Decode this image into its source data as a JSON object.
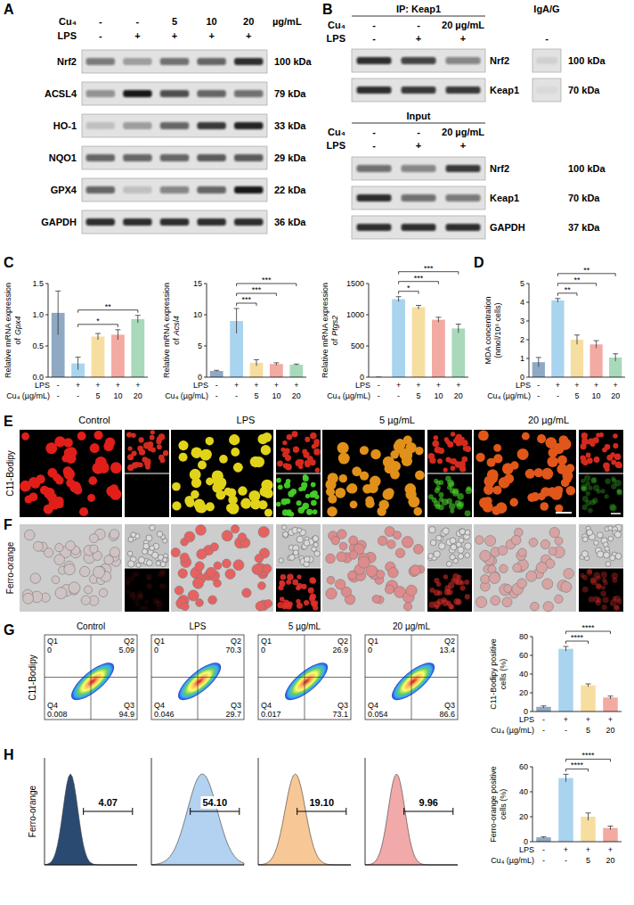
{
  "panel_a": {
    "letter": "A",
    "treatments": [
      {
        "label": "Cu₄",
        "values": [
          "-",
          "-",
          "5",
          "10",
          "20"
        ],
        "unit": "µg/mL"
      },
      {
        "label": "LPS",
        "values": [
          "-",
          "+",
          "+",
          "+",
          "+"
        ]
      }
    ],
    "rows": [
      {
        "protein": "Nrf2",
        "size": "100 kDa",
        "bands": [
          0.5,
          0.3,
          0.55,
          0.6,
          0.85
        ]
      },
      {
        "protein": "ACSL4",
        "size": "79 kDa",
        "bands": [
          0.4,
          0.95,
          0.7,
          0.6,
          0.55
        ]
      },
      {
        "protein": "HO-1",
        "size": "33 kDa",
        "bands": [
          0.15,
          0.3,
          0.6,
          0.8,
          0.9
        ]
      },
      {
        "protein": "NQO1",
        "size": "29 kDa",
        "bands": [
          0.6,
          0.6,
          0.6,
          0.65,
          0.65
        ]
      },
      {
        "protein": "GPX4",
        "size": "22 kDa",
        "bands": [
          0.6,
          0.15,
          0.45,
          0.6,
          0.95
        ]
      },
      {
        "protein": "GAPDH",
        "size": "36 kDa",
        "bands": [
          0.85,
          0.85,
          0.85,
          0.85,
          0.85
        ]
      }
    ]
  },
  "panel_b": {
    "letter": "B",
    "ip_title": "IP: Keap1",
    "control_lane": "IgA/G",
    "ip_treatments": [
      {
        "label": "Cu₄",
        "values": [
          "-",
          "-",
          "20 µg/mL"
        ]
      },
      {
        "label": "LPS",
        "values": [
          "-",
          "+",
          "+",
          "-"
        ]
      }
    ],
    "ip_rows": [
      {
        "protein": "Nrf2",
        "size": "100 kDa",
        "bands": [
          0.85,
          0.75,
          0.45
        ],
        "control_band": 0.08
      },
      {
        "protein": "Keap1",
        "size": "70 kDa",
        "bands": [
          0.85,
          0.8,
          0.8
        ],
        "control_band": 0.04
      }
    ],
    "input_title": "Input",
    "input_treatments": [
      {
        "label": "Cu₄",
        "values": [
          "-",
          "-",
          "20 µg/mL"
        ]
      },
      {
        "label": "LPS",
        "values": [
          "-",
          "+",
          "+"
        ]
      }
    ],
    "input_rows": [
      {
        "protein": "Nrf2",
        "size": "100 kDa",
        "bands": [
          0.55,
          0.45,
          0.8
        ]
      },
      {
        "protein": "Keap1",
        "size": "70 kDa",
        "bands": [
          0.85,
          0.55,
          0.5
        ]
      },
      {
        "protein": "GAPDH",
        "size": "37 kDa",
        "bands": [
          0.85,
          0.85,
          0.85
        ]
      }
    ]
  },
  "panel_e": {
    "letter": "E",
    "channel": "C11-Bodipy",
    "conditions": [
      "Control",
      "LPS",
      "5 µg/mL",
      "20 µg/mL"
    ]
  },
  "panel_f": {
    "letter": "F",
    "channel": "Ferro-orange"
  },
  "panel_g": {
    "letter": "G",
    "channel": "C11-Bodipy",
    "conditions": [
      "Control",
      "LPS",
      "5 µg/mL",
      "20 µg/mL"
    ],
    "plots": [
      {
        "quadrants": [
          {
            "name": "Q1",
            "value": 0
          },
          {
            "name": "Q2",
            "value": 5.09
          },
          {
            "name": "Q3",
            "value": 94.9
          },
          {
            "name": "Q4",
            "value": 0.008
          }
        ]
      },
      {
        "quadrants": [
          {
            "name": "Q1",
            "value": 0
          },
          {
            "name": "Q2",
            "value": 70.3
          },
          {
            "name": "Q3",
            "value": 29.7
          },
          {
            "name": "Q4",
            "value": 0.046
          }
        ]
      },
      {
        "quadrants": [
          {
            "name": "Q1",
            "value": 0
          },
          {
            "name": "Q2",
            "value": 26.9
          },
          {
            "name": "Q3",
            "value": 73.1
          },
          {
            "name": "Q4",
            "value": 0.017
          }
        ]
      },
      {
        "quadrants": [
          {
            "name": "Q1",
            "value": 0
          },
          {
            "name": "Q2",
            "value": 13.4
          },
          {
            "name": "Q3",
            "value": 86.6
          },
          {
            "name": "Q4",
            "value": 0.054
          }
        ]
      }
    ]
  },
  "panel_h": {
    "letter": "H",
    "channel": "Ferro-orange",
    "plots": [
      {
        "gate": {
          "value": 4.07,
          "label": "4.07"
        },
        "color": "#2b4a72"
      },
      {
        "gate": {
          "value": 54.1,
          "label": "54.10"
        },
        "color": "#b3d1f0"
      },
      {
        "gate": {
          "value": 19.1,
          "label": "19.10"
        },
        "color": "#f7c795"
      },
      {
        "gate": {
          "value": 9.96,
          "label": "9.96"
        },
        "color": "#f2a9a9"
      }
    ]
  },
  "chart_data": [
    {
      "type": "bar",
      "panel": "C",
      "y_label": [
        "Relative mRNA expression",
        "of"
      ],
      "gene": "Gpx4",
      "categories": [
        null,
        null,
        null,
        null,
        null
      ],
      "values": [
        1.03,
        0.22,
        0.65,
        0.68,
        0.93
      ],
      "errors": [
        0.35,
        0.1,
        0.05,
        0.08,
        0.06
      ],
      "colors": [
        "#8ea9c4",
        "#a9d4ef",
        "#f6dea0",
        "#f2aaa2",
        "#a8d9ba"
      ],
      "ylim": [
        0,
        1.5
      ],
      "yticks": [
        {
          "value": 0,
          "label": "0.0"
        },
        {
          "value": 0.5,
          "label": "0.5"
        },
        {
          "value": 1,
          "label": "1.0"
        },
        {
          "value": 1.5,
          "label": "1.5"
        }
      ],
      "x_table": [
        {
          "label": "LPS",
          "values": [
            "-",
            "+",
            "+",
            "+",
            "+"
          ]
        },
        {
          "label": "Cu₄ (µg/mL)",
          "values": [
            "-",
            "-",
            "5",
            "10",
            "20"
          ]
        }
      ],
      "significance": [
        {
          "from": 1,
          "to": 3,
          "label": "*"
        },
        {
          "from": 1,
          "to": 4,
          "label": "**"
        }
      ]
    },
    {
      "type": "bar",
      "y_label": [
        "Relative mRNA expression",
        "of"
      ],
      "gene": "Acsl4",
      "categories": [
        null,
        null,
        null,
        null,
        null
      ],
      "values": [
        1.0,
        9.0,
        2.3,
        2.1,
        2.0
      ],
      "errors": [
        0.1,
        2.0,
        0.5,
        0.2,
        0.1
      ],
      "colors": [
        "#8ea9c4",
        "#a9d4ef",
        "#f6dea0",
        "#f2aaa2",
        "#a8d9ba"
      ],
      "ylim": [
        0,
        15
      ],
      "yticks": [
        0,
        5,
        10,
        15
      ],
      "x_table": [
        {
          "label": "LPS",
          "values": [
            "-",
            "+",
            "+",
            "+",
            "+"
          ]
        },
        {
          "label": "Cu₄ (µg/mL)",
          "values": [
            "-",
            "-",
            "5",
            "10",
            "20"
          ]
        }
      ],
      "significance": [
        {
          "from": 1,
          "to": 2,
          "label": "***"
        },
        {
          "from": 1,
          "to": 3,
          "label": "***"
        },
        {
          "from": 1,
          "to": 4,
          "label": "***"
        }
      ]
    },
    {
      "type": "bar",
      "y_label": [
        "Relative mRNA expression",
        "of"
      ],
      "gene": "Ptgs2",
      "categories": [
        null,
        null,
        null,
        null,
        null
      ],
      "values": [
        1,
        1250,
        1120,
        920,
        780
      ],
      "errors": [
        0.5,
        40,
        30,
        40,
        70
      ],
      "colors": [
        "#8ea9c4",
        "#a9d4ef",
        "#f6dea0",
        "#f2aaa2",
        "#a8d9ba"
      ],
      "ylim": [
        0,
        1500
      ],
      "yticks": [
        0,
        500,
        1000,
        1500
      ],
      "x_table": [
        {
          "label": "LPS",
          "values": [
            "-",
            "+",
            "+",
            "+",
            "+"
          ]
        },
        {
          "label": "Cu₄ (µg/mL)",
          "values": [
            "-",
            "-",
            "5",
            "10",
            "20"
          ]
        }
      ],
      "significance": [
        {
          "from": 1,
          "to": 2,
          "label": "*"
        },
        {
          "from": 1,
          "to": 3,
          "label": "***"
        },
        {
          "from": 1,
          "to": 4,
          "label": "***"
        }
      ]
    },
    {
      "type": "bar",
      "panel": "D",
      "y_label": [
        "MDA concentration",
        "(nmol/10⁶ cells)"
      ],
      "categories": [
        null,
        null,
        null,
        null,
        null
      ],
      "values": [
        0.8,
        4.1,
        2.0,
        1.75,
        1.05
      ],
      "errors": [
        0.25,
        0.1,
        0.25,
        0.2,
        0.2
      ],
      "colors": [
        "#8ea9c4",
        "#a9d4ef",
        "#f6dea0",
        "#f2aaa2",
        "#a8d9ba"
      ],
      "ylim": [
        0,
        5
      ],
      "yticks": [
        0,
        1,
        2,
        3,
        4,
        5
      ],
      "x_table": [
        {
          "label": "LPS",
          "values": [
            "-",
            "+",
            "+",
            "+",
            "+"
          ]
        },
        {
          "label": "Cu₄ (µg/mL)",
          "values": [
            "-",
            "-",
            "5",
            "10",
            "20"
          ]
        }
      ],
      "significance": [
        {
          "from": 1,
          "to": 2,
          "label": "**"
        },
        {
          "from": 1,
          "to": 3,
          "label": "**"
        },
        {
          "from": 1,
          "to": 4,
          "label": "**"
        }
      ]
    },
    {
      "type": "bar",
      "y_label": [
        "C11-Bodipy positive",
        "cells (%)"
      ],
      "categories": [
        null,
        null,
        null,
        null
      ],
      "values": [
        5,
        67,
        28,
        15
      ],
      "errors": [
        1,
        2.5,
        1.5,
        1.5
      ],
      "colors": [
        "#8ea9c4",
        "#a9d4ef",
        "#f6dea0",
        "#f2aaa2"
      ],
      "ylim": [
        0,
        80
      ],
      "yticks": [
        0,
        20,
        40,
        60,
        80
      ],
      "x_table": [
        {
          "label": "LPS",
          "values": [
            "-",
            "+",
            "+",
            "+"
          ]
        },
        {
          "label": "Cu₄ (µg/mL)",
          "values": [
            "-",
            "-",
            "5",
            "20"
          ]
        }
      ],
      "significance": [
        {
          "from": 1,
          "to": 2,
          "label": "****"
        },
        {
          "from": 1,
          "to": 3,
          "label": "****"
        }
      ]
    },
    {
      "type": "bar",
      "y_label": [
        "Ferro-orange positive",
        "cells (%)"
      ],
      "categories": [
        null,
        null,
        null,
        null
      ],
      "values": [
        3.5,
        51,
        20,
        11
      ],
      "errors": [
        0.5,
        3,
        3,
        1.5
      ],
      "colors": [
        "#8ea9c4",
        "#a9d4ef",
        "#f6dea0",
        "#f2aaa2"
      ],
      "ylim": [
        0,
        60
      ],
      "yticks": [
        0,
        20,
        40,
        60
      ],
      "x_table": [
        {
          "label": "LPS",
          "values": [
            "-",
            "+",
            "+",
            "+"
          ]
        },
        {
          "label": "Cu₄ (µg/mL)",
          "values": [
            "-",
            "-",
            "5",
            "20"
          ]
        }
      ],
      "significance": [
        {
          "from": 1,
          "to": 2,
          "label": "****"
        },
        {
          "from": 1,
          "to": 3,
          "label": "****"
        }
      ]
    }
  ]
}
